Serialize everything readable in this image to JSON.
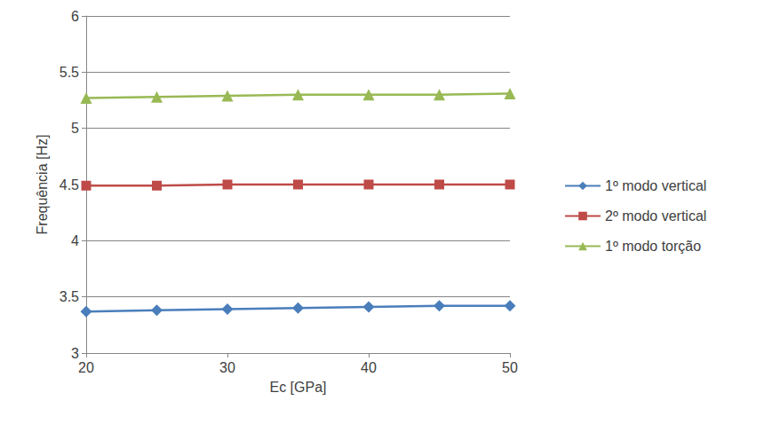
{
  "chart_data": {
    "type": "line",
    "x_label": "Ec [GPa]",
    "y_label": "Frequência [Hz]",
    "x": [
      20,
      25,
      30,
      35,
      40,
      45,
      50
    ],
    "series": [
      {
        "name": "1º modo vertical",
        "color": "#4a7ebb",
        "marker": "diamond",
        "line_style": "solid",
        "values": [
          3.37,
          3.38,
          3.39,
          3.4,
          3.41,
          3.42,
          3.42
        ]
      },
      {
        "name": "2º modo vertical",
        "color": "#be4b48",
        "marker": "square",
        "line_style": "solid",
        "values": [
          4.49,
          4.49,
          4.5,
          4.5,
          4.5,
          4.5,
          4.5
        ]
      },
      {
        "name": "1º modo torção",
        "color": "#98b954",
        "marker": "triangle",
        "line_style": "solid",
        "values": [
          5.27,
          5.28,
          5.29,
          5.3,
          5.3,
          5.3,
          5.31
        ]
      }
    ],
    "xlim": [
      20,
      50
    ],
    "xticks": [
      20,
      30,
      40,
      50
    ],
    "ylim": [
      3,
      6
    ],
    "yticks": [
      3,
      3.5,
      4,
      4.5,
      5,
      5.5,
      6
    ],
    "grid": true,
    "legend": "right"
  }
}
